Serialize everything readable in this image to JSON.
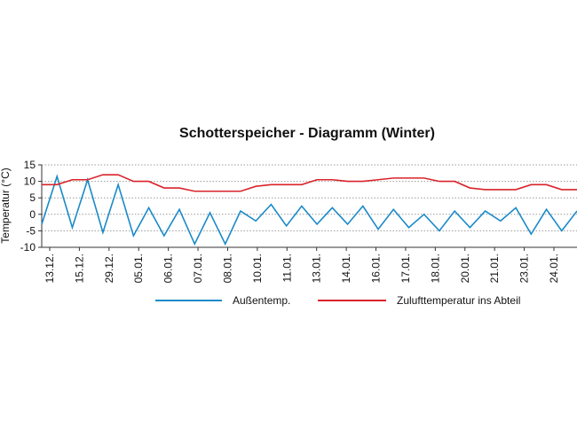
{
  "chart_data": {
    "type": "line",
    "title": "Schotterspeicher - Diagramm (Winter)",
    "xlabel": "",
    "ylabel": "Temperatur (°C)",
    "ylim": [
      -10,
      15
    ],
    "yticks": [
      15,
      10,
      5,
      0,
      -5,
      -10
    ],
    "grid": true,
    "legend_position": "bottom",
    "x_tick_labels": [
      "13.12.",
      "15.12.",
      "29.12.",
      "05.01.",
      "06.01.",
      "07.01.",
      "08.01.",
      "10.01.",
      "11.01.",
      "13.01.",
      "14.01.",
      "16.01.",
      "17.01.",
      "18.01.",
      "20.01.",
      "21.01.",
      "23.01.",
      "24.01."
    ],
    "series": [
      {
        "name": "Außentemp.",
        "color": "#1a8ac8",
        "values": [
          -3,
          11.5,
          -4,
          10.5,
          -5.5,
          9,
          -6.5,
          2,
          -6.5,
          1.5,
          -9,
          0.5,
          -9,
          1,
          -2,
          3,
          -3.5,
          2.5,
          -3,
          2,
          -3,
          2.5,
          -4.5,
          1.5,
          -4,
          0,
          -5,
          1,
          -4,
          1,
          -2,
          2,
          -6,
          1.5,
          -5,
          1
        ]
      },
      {
        "name": "Zulufttemperatur ins Abteil",
        "color": "#d9232a",
        "values": [
          9,
          9,
          10.5,
          10.5,
          12,
          12,
          10,
          10,
          8,
          8,
          7,
          7,
          7,
          7,
          8.5,
          9,
          9,
          9,
          10.5,
          10.5,
          10,
          10,
          10.5,
          11,
          11,
          11,
          10,
          10,
          8,
          7.5,
          7.5,
          7.5,
          9,
          9,
          7.5,
          7.5
        ]
      }
    ]
  }
}
